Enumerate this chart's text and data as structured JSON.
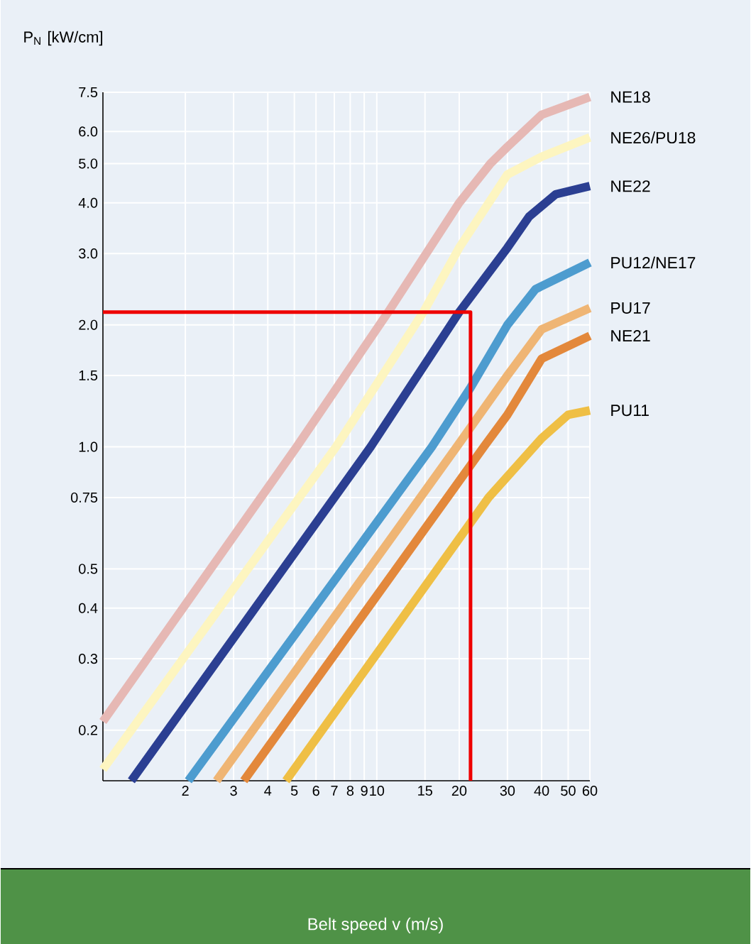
{
  "chart_data": {
    "type": "line",
    "ylabel": "P$_{N}$ [kW/cm]",
    "annotations": [
      "Belt speed v (m/s)"
    ],
    "log": "xy",
    "grid": true,
    "xlim": [
      1,
      60
    ],
    "ylim": [
      0.15,
      7.5
    ],
    "xticks": [
      {
        "value": 1,
        "label": null
      },
      2,
      3,
      4,
      5,
      6,
      7,
      8,
      9,
      10,
      15,
      20,
      30,
      40,
      50,
      60
    ],
    "yticks": [
      0.2,
      0.3,
      0.4,
      0.5,
      0.75,
      {
        "value": 1,
        "label": "1.0"
      },
      1.5,
      {
        "value": 2,
        "label": "2.0"
      },
      {
        "value": 3,
        "label": "3.0"
      },
      {
        "value": 4,
        "label": "4.0"
      },
      {
        "value": 5,
        "label": "5.0"
      },
      {
        "value": 6,
        "label": "6.0"
      },
      7.5
    ],
    "series": [
      {
        "name": "NE18",
        "color": "#e6b8b4",
        "x": [
          1,
          5.1,
          11,
          20,
          26,
          30,
          40,
          60
        ],
        "values": [
          0.21,
          1.0,
          2.15,
          4.0,
          5.0,
          5.5,
          6.6,
          7.3
        ]
      },
      {
        "name": "NE26/PU18",
        "color": "#fdf5c0",
        "x": [
          1,
          7.1,
          14.8,
          20,
          30,
          40,
          60
        ],
        "values": [
          0.16,
          1.0,
          2.15,
          3.1,
          4.7,
          5.2,
          5.8
        ]
      },
      {
        "name": "NE22",
        "color": "#2b3f92",
        "x": [
          1.27,
          9.5,
          20,
          30,
          36,
          45,
          60
        ],
        "values": [
          0.15,
          1.0,
          2.15,
          3.1,
          3.7,
          4.2,
          4.4
        ]
      },
      {
        "name": "PU12/NE17",
        "color": "#4d9ccf",
        "x": [
          2.05,
          15.9,
          22,
          30,
          38,
          60
        ],
        "values": [
          0.15,
          1.0,
          1.4,
          2.0,
          2.45,
          2.85
        ]
      },
      {
        "name": "PU17",
        "color": "#efb574",
        "x": [
          2.6,
          19.6,
          30,
          40,
          60
        ],
        "values": [
          0.15,
          1.0,
          1.5,
          1.95,
          2.2
        ]
      },
      {
        "name": "NE21",
        "color": "#e3883b",
        "x": [
          3.27,
          24.6,
          30,
          40,
          60
        ],
        "values": [
          0.15,
          1.0,
          1.2,
          1.65,
          1.88
        ]
      },
      {
        "name": "PU11",
        "color": "#efbf45",
        "x": [
          4.66,
          25.6,
          40,
          50,
          60
        ],
        "values": [
          0.15,
          0.75,
          1.05,
          1.2,
          1.23
        ]
      },
      {
        "color": "#ee0000",
        "x": [
          1,
          22,
          22
        ],
        "values": [
          2.15,
          2.15,
          0.15
        ]
      }
    ]
  }
}
